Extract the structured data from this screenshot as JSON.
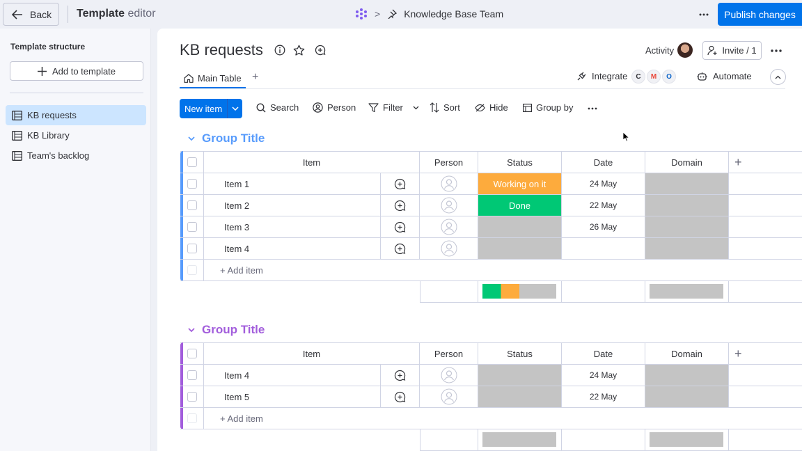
{
  "topbar": {
    "back_label": "Back",
    "editor_title_bold": "Template",
    "editor_title_rest": " editor",
    "breadcrumb_separator": ">",
    "workspace_name": "Knowledge Base Team",
    "publish_label": "Publish changes",
    "accent": "#0073ea"
  },
  "sidebar": {
    "title": "Template structure",
    "add_label": "Add to template",
    "items": [
      {
        "label": "KB requests",
        "active": true
      },
      {
        "label": "KB Library",
        "active": false
      },
      {
        "label": "Team's backlog",
        "active": false
      }
    ]
  },
  "board": {
    "title": "KB requests",
    "activity_label": "Activity",
    "invite_label": "Invite / 1",
    "tabs": [
      {
        "label": "Main Table"
      }
    ],
    "tab_add": "+",
    "integrate_label": "Integrate",
    "integration_logos": [
      "C",
      "M",
      "O"
    ],
    "automate_label": "Automate"
  },
  "toolbar": {
    "new_item_label": "New item",
    "search_label": "Search",
    "person_label": "Person",
    "filter_label": "Filter",
    "sort_label": "Sort",
    "hide_label": "Hide",
    "group_by_label": "Group by"
  },
  "columns": [
    "Item",
    "Person",
    "Status",
    "Date",
    "Domain"
  ],
  "add_column": "+",
  "add_item_label": "+ Add item",
  "groups": [
    {
      "title": "Group Title",
      "color": "#579bfc",
      "rows": [
        {
          "item": "Item 1",
          "status": "Working on it",
          "status_color": "#fdab3d",
          "date": "24 May"
        },
        {
          "item": "Item 2",
          "status": "Done",
          "status_color": "#00c875",
          "date": "22 May"
        },
        {
          "item": "Item 3",
          "status": "",
          "status_color": "#c4c4c4",
          "date": "26 May"
        },
        {
          "item": "Item 4",
          "status": "",
          "status_color": "#c4c4c4",
          "date": ""
        }
      ],
      "status_summary": [
        {
          "color": "#00c875",
          "fraction": 0.25
        },
        {
          "color": "#fdab3d",
          "fraction": 0.25
        },
        {
          "color": "#c4c4c4",
          "fraction": 0.5
        }
      ]
    },
    {
      "title": "Group Title",
      "color": "#a25ddc",
      "rows": [
        {
          "item": "Item 4",
          "status": "",
          "status_color": "#c4c4c4",
          "date": "24 May"
        },
        {
          "item": "Item 5",
          "status": "",
          "status_color": "#c4c4c4",
          "date": "22 May"
        }
      ],
      "status_summary": [
        {
          "color": "#c4c4c4",
          "fraction": 1.0
        }
      ]
    }
  ]
}
